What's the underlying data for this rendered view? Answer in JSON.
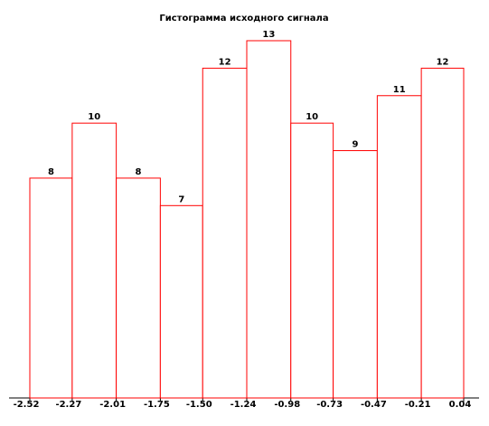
{
  "chart_data": {
    "type": "histogram",
    "title": "Гистограмма исходного сигнала",
    "bins": [
      -2.52,
      -2.27,
      -2.01,
      -1.75,
      -1.5,
      -1.24,
      -0.98,
      -0.73,
      -0.47,
      -0.21,
      0.04
    ],
    "values": [
      8,
      10,
      8,
      7,
      12,
      13,
      10,
      9,
      11,
      12
    ],
    "color": "#ff0000",
    "xlim": [
      -2.52,
      0.04
    ],
    "ylim": [
      0,
      13
    ],
    "xticks": [
      -2.52,
      -2.27,
      -2.01,
      -1.75,
      {
        "value": -1.5,
        "label": "-1.50"
      },
      -1.24,
      -0.98,
      -0.73,
      -0.47,
      -0.21,
      0.04
    ]
  }
}
